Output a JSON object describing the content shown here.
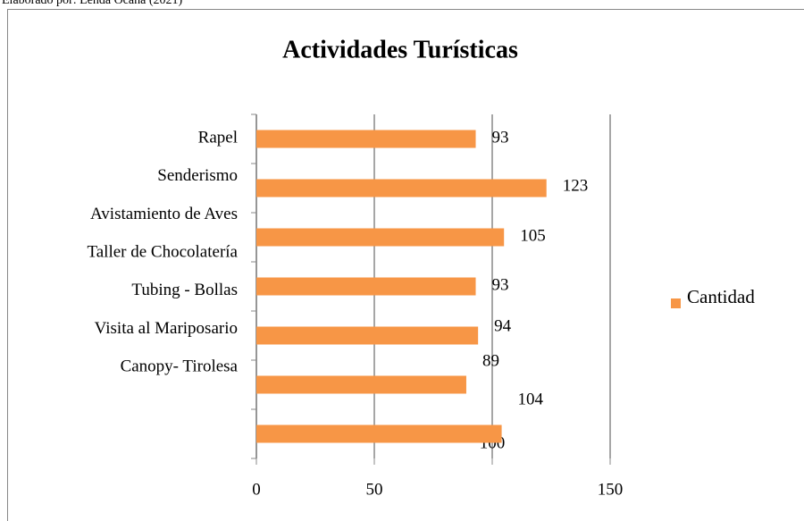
{
  "source": "Elaborado por: Lenda Ocaña (2021)",
  "chart_data": {
    "type": "bar",
    "orientation": "horizontal",
    "title": "Actividades Turísticas",
    "categories": [
      "Rapel",
      "Senderismo",
      "Avistamiento de Aves",
      "Taller de Chocolatería",
      "Tubing - Bollas",
      "Visita al Mariposario",
      "Canopy- Tirolesa"
    ],
    "series": [
      {
        "name": "Cantidad",
        "color": "#f79646",
        "values": [
          93,
          123,
          105,
          93,
          94,
          89,
          104
        ]
      }
    ],
    "xlim": [
      0,
      150
    ],
    "xticks": [
      0,
      50,
      100,
      150
    ],
    "grid": true,
    "legend": "right"
  }
}
